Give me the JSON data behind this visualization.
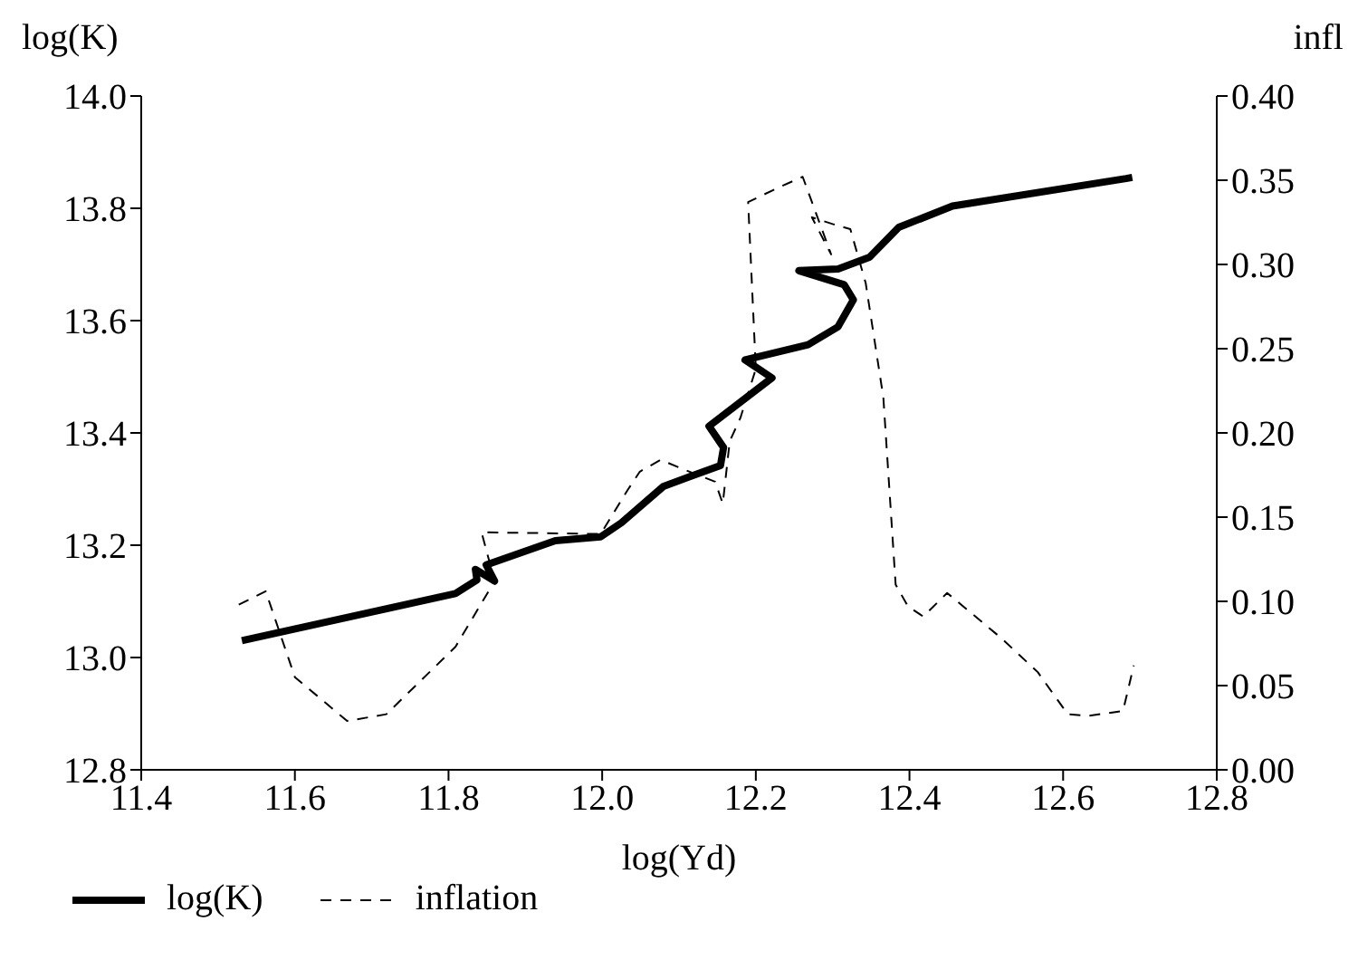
{
  "chart_data": {
    "type": "line",
    "xlabel": "log(Yd)",
    "ylabel": "log(K)",
    "y2label": "infl",
    "xlim": [
      11.4,
      12.8
    ],
    "xticks": [
      {
        "value": 11.4,
        "label": "11.4"
      },
      {
        "value": 11.6,
        "label": "11.6"
      },
      {
        "value": 11.8,
        "label": "11.8"
      },
      {
        "value": 12.0,
        "label": "12.0"
      },
      {
        "value": 12.2,
        "label": "12.2"
      },
      {
        "value": 12.4,
        "label": "12.4"
      },
      {
        "value": 12.6,
        "label": "12.6"
      },
      {
        "value": 12.8,
        "label": "12.8"
      }
    ],
    "ylim": [
      12.8,
      14.0
    ],
    "yticks": [
      {
        "value": 12.8,
        "label": "12.8"
      },
      {
        "value": 13.0,
        "label": "13.0"
      },
      {
        "value": 13.2,
        "label": "13.2"
      },
      {
        "value": 13.4,
        "label": "13.4"
      },
      {
        "value": 13.6,
        "label": "13.6"
      },
      {
        "value": 13.8,
        "label": "13.8"
      },
      {
        "value": 14.0,
        "label": "14.0"
      }
    ],
    "y2lim": [
      0,
      0.4
    ],
    "y2ticks": [
      {
        "value": 0,
        "label": "0.00"
      },
      {
        "value": 0.05,
        "label": "0.05"
      },
      {
        "value": 0.1,
        "label": "0.10"
      },
      {
        "value": 0.15,
        "label": "0.15"
      },
      {
        "value": 0.2,
        "label": "0.20"
      },
      {
        "value": 0.25,
        "label": "0.25"
      },
      {
        "value": 0.3,
        "label": "0.30"
      },
      {
        "value": 0.35,
        "label": "0.35"
      },
      {
        "value": 0.4,
        "label": "0.40"
      }
    ],
    "grid": false,
    "legend": "bottom left",
    "marker": "none",
    "series": [
      {
        "name": "log(K)",
        "color": "#000000",
        "line_style": "solid",
        "x": [
          11.531,
          11.809,
          11.837,
          11.835,
          11.86,
          11.849,
          11.939,
          11.998,
          12.025,
          12.08,
          12.154,
          12.158,
          12.139,
          12.221,
          12.186,
          12.268,
          12.307,
          12.327,
          12.315,
          12.256,
          12.307,
          12.348,
          12.386,
          12.456,
          12.682,
          12.69
        ],
        "values": [
          13.03,
          13.114,
          13.138,
          13.157,
          13.136,
          13.165,
          13.208,
          13.215,
          13.24,
          13.305,
          13.342,
          13.374,
          13.412,
          13.498,
          13.53,
          13.557,
          13.589,
          13.637,
          13.664,
          13.689,
          13.692,
          13.713,
          13.766,
          13.804,
          13.853,
          13.855
        ]
      },
      {
        "name": "inflation",
        "color": "#000000",
        "line_style": "dashed",
        "axis": "y2",
        "x": [
          11.527,
          11.562,
          11.6,
          11.668,
          11.719,
          11.809,
          11.86,
          11.843,
          11.998,
          12.033,
          12.049,
          12.076,
          12.108,
          12.147,
          12.157,
          12.166,
          12.18,
          12.2,
          12.19,
          12.231,
          12.261,
          12.298,
          12.273,
          12.3,
          12.323,
          12.343,
          12.366,
          12.382,
          12.398,
          12.418,
          12.449,
          12.52,
          12.567,
          12.606,
          12.633,
          12.678,
          12.692
        ],
        "values": [
          0.098,
          0.106,
          0.055,
          0.029,
          0.033,
          0.073,
          0.112,
          0.141,
          0.14,
          0.166,
          0.177,
          0.184,
          0.178,
          0.171,
          0.158,
          0.195,
          0.209,
          0.238,
          0.337,
          0.346,
          0.352,
          0.306,
          0.328,
          0.324,
          0.321,
          0.289,
          0.221,
          0.11,
          0.097,
          0.091,
          0.105,
          0.078,
          0.058,
          0.033,
          0.032,
          0.035,
          0.062
        ]
      }
    ]
  }
}
